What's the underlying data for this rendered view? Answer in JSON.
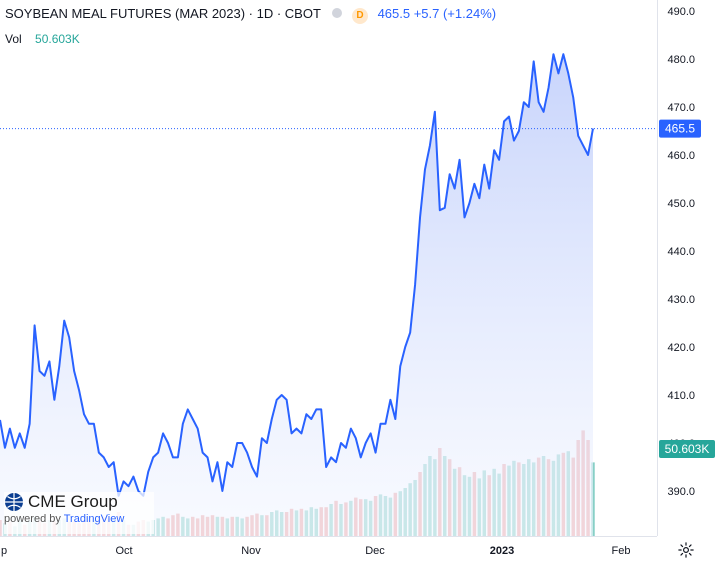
{
  "header": {
    "symbol_title": "SOYBEAN MEAL FUTURES (MAR 2023) · 1D · CBOT",
    "price_text": "465.5 +5.7 (+1.24%)",
    "badge": "D"
  },
  "volume_label": {
    "label": "Vol",
    "value": "50.603K"
  },
  "watermark": {
    "brand": "CME Group",
    "powered_prefix": "powered by ",
    "powered_name": "TradingView"
  },
  "colors": {
    "line": "#2962ff",
    "area_top": "#c5d2fb",
    "area_bottom": "#f4f7ff",
    "vol_up": "#87cfc6",
    "vol_down": "#eea1a1",
    "price_label_bg": "#2962ff",
    "vol_label_bg": "#26a69a"
  },
  "chart_data": {
    "type": "area",
    "x_ticks": [
      "p",
      "Oct",
      "Nov",
      "Dec",
      "2023",
      "Feb"
    ],
    "y_ticks": [
      390,
      400,
      410,
      420,
      430,
      440,
      450,
      460,
      470,
      480,
      490
    ],
    "ylim": [
      380.8,
      491.2
    ],
    "last_price_label": "465.5",
    "last_volume_label": "50.603K",
    "price": [
      404.8,
      399,
      403,
      399,
      402,
      399,
      404,
      424.5,
      415,
      414,
      417,
      409,
      416,
      425.5,
      422,
      415,
      411,
      406,
      404,
      404,
      398,
      397,
      395,
      396,
      389,
      392,
      391,
      393,
      390,
      389,
      394,
      397,
      398,
      402,
      400,
      397,
      397,
      404,
      407,
      405,
      403,
      398,
      397,
      392,
      396,
      390,
      396,
      395,
      400,
      400,
      398,
      395,
      393,
      401,
      400,
      405,
      409,
      410,
      409,
      402,
      403,
      402,
      406,
      405,
      407,
      407,
      395,
      397,
      396,
      400,
      399,
      403,
      401,
      397,
      400,
      402,
      398,
      404,
      404,
      409,
      405,
      416,
      420,
      423,
      433,
      447,
      457,
      462,
      469,
      448.5,
      449,
      456,
      453,
      459,
      447,
      450,
      454,
      451,
      458,
      453,
      461,
      459,
      467,
      468,
      463,
      465,
      471,
      470,
      479.5,
      471,
      469,
      474,
      481,
      477,
      481,
      477,
      472,
      464,
      462,
      460,
      465.5
    ],
    "volume": [
      {
        "v": 0.1,
        "up": false
      },
      {
        "v": 0.08,
        "up": true
      },
      {
        "v": 0.09,
        "up": false
      },
      {
        "v": 0.06,
        "up": true
      },
      {
        "v": 0.1,
        "up": true
      },
      {
        "v": 0.07,
        "up": false
      },
      {
        "v": 0.1,
        "up": true
      },
      {
        "v": 0.12,
        "up": true
      },
      {
        "v": 0.09,
        "up": false
      },
      {
        "v": 0.08,
        "up": false
      },
      {
        "v": 0.1,
        "up": true
      },
      {
        "v": 0.09,
        "up": false
      },
      {
        "v": 0.1,
        "up": true
      },
      {
        "v": 0.11,
        "up": true
      },
      {
        "v": 0.09,
        "up": false
      },
      {
        "v": 0.09,
        "up": false
      },
      {
        "v": 0.08,
        "up": false
      },
      {
        "v": 0.1,
        "up": false
      },
      {
        "v": 0.1,
        "up": false
      },
      {
        "v": 0.1,
        "up": true
      },
      {
        "v": 0.11,
        "up": false
      },
      {
        "v": 0.12,
        "up": false
      },
      {
        "v": 0.11,
        "up": false
      },
      {
        "v": 0.1,
        "up": true
      },
      {
        "v": 0.15,
        "up": false
      },
      {
        "v": 0.1,
        "up": true
      },
      {
        "v": 0.07,
        "up": false
      },
      {
        "v": 0.07,
        "up": true
      },
      {
        "v": 0.09,
        "up": false
      },
      {
        "v": 0.1,
        "up": false
      },
      {
        "v": 0.09,
        "up": true
      },
      {
        "v": 0.1,
        "up": true
      },
      {
        "v": 0.11,
        "up": true
      },
      {
        "v": 0.12,
        "up": true
      },
      {
        "v": 0.11,
        "up": false
      },
      {
        "v": 0.13,
        "up": false
      },
      {
        "v": 0.14,
        "up": false
      },
      {
        "v": 0.12,
        "up": true
      },
      {
        "v": 0.11,
        "up": true
      },
      {
        "v": 0.12,
        "up": false
      },
      {
        "v": 0.11,
        "up": false
      },
      {
        "v": 0.13,
        "up": false
      },
      {
        "v": 0.12,
        "up": false
      },
      {
        "v": 0.13,
        "up": false
      },
      {
        "v": 0.12,
        "up": true
      },
      {
        "v": 0.12,
        "up": false
      },
      {
        "v": 0.11,
        "up": true
      },
      {
        "v": 0.12,
        "up": false
      },
      {
        "v": 0.12,
        "up": true
      },
      {
        "v": 0.11,
        "up": true
      },
      {
        "v": 0.12,
        "up": false
      },
      {
        "v": 0.13,
        "up": false
      },
      {
        "v": 0.14,
        "up": false
      },
      {
        "v": 0.13,
        "up": true
      },
      {
        "v": 0.13,
        "up": false
      },
      {
        "v": 0.15,
        "up": true
      },
      {
        "v": 0.16,
        "up": true
      },
      {
        "v": 0.15,
        "up": true
      },
      {
        "v": 0.15,
        "up": false
      },
      {
        "v": 0.17,
        "up": false
      },
      {
        "v": 0.16,
        "up": true
      },
      {
        "v": 0.17,
        "up": false
      },
      {
        "v": 0.16,
        "up": true
      },
      {
        "v": 0.18,
        "up": true
      },
      {
        "v": 0.17,
        "up": true
      },
      {
        "v": 0.18,
        "up": false
      },
      {
        "v": 0.18,
        "up": false
      },
      {
        "v": 0.2,
        "up": true
      },
      {
        "v": 0.22,
        "up": false
      },
      {
        "v": 0.2,
        "up": true
      },
      {
        "v": 0.21,
        "up": false
      },
      {
        "v": 0.22,
        "up": true
      },
      {
        "v": 0.24,
        "up": false
      },
      {
        "v": 0.23,
        "up": false
      },
      {
        "v": 0.23,
        "up": true
      },
      {
        "v": 0.22,
        "up": true
      },
      {
        "v": 0.25,
        "up": false
      },
      {
        "v": 0.26,
        "up": true
      },
      {
        "v": 0.25,
        "up": true
      },
      {
        "v": 0.24,
        "up": true
      },
      {
        "v": 0.27,
        "up": false
      },
      {
        "v": 0.28,
        "up": true
      },
      {
        "v": 0.3,
        "up": true
      },
      {
        "v": 0.33,
        "up": true
      },
      {
        "v": 0.35,
        "up": true
      },
      {
        "v": 0.4,
        "up": false
      },
      {
        "v": 0.45,
        "up": true
      },
      {
        "v": 0.5,
        "up": true
      },
      {
        "v": 0.48,
        "up": true
      },
      {
        "v": 0.55,
        "up": false
      },
      {
        "v": 0.5,
        "up": true
      },
      {
        "v": 0.48,
        "up": false
      },
      {
        "v": 0.42,
        "up": true
      },
      {
        "v": 0.43,
        "up": false
      },
      {
        "v": 0.38,
        "up": true
      },
      {
        "v": 0.37,
        "up": true
      },
      {
        "v": 0.4,
        "up": false
      },
      {
        "v": 0.36,
        "up": true
      },
      {
        "v": 0.41,
        "up": true
      },
      {
        "v": 0.38,
        "up": false
      },
      {
        "v": 0.42,
        "up": true
      },
      {
        "v": 0.39,
        "up": true
      },
      {
        "v": 0.45,
        "up": false
      },
      {
        "v": 0.44,
        "up": true
      },
      {
        "v": 0.47,
        "up": true
      },
      {
        "v": 0.46,
        "up": false
      },
      {
        "v": 0.45,
        "up": true
      },
      {
        "v": 0.48,
        "up": true
      },
      {
        "v": 0.46,
        "up": true
      },
      {
        "v": 0.49,
        "up": false
      },
      {
        "v": 0.5,
        "up": true
      },
      {
        "v": 0.48,
        "up": false
      },
      {
        "v": 0.47,
        "up": true
      },
      {
        "v": 0.51,
        "up": true
      },
      {
        "v": 0.52,
        "up": false
      },
      {
        "v": 0.53,
        "up": true
      },
      {
        "v": 0.49,
        "up": false
      },
      {
        "v": 0.6,
        "up": false
      },
      {
        "v": 0.66,
        "up": false
      },
      {
        "v": 0.6,
        "up": false
      },
      {
        "v": 0.46,
        "up": true
      }
    ]
  }
}
